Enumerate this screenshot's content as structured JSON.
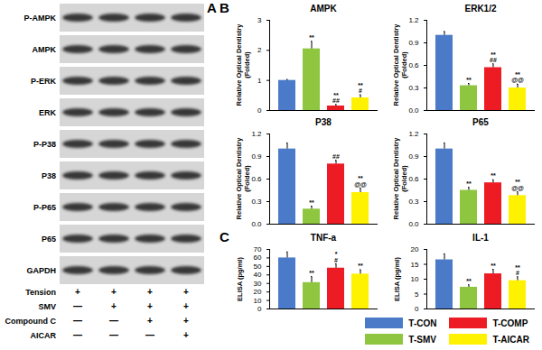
{
  "panel_labels": [
    "A",
    "B",
    "C"
  ],
  "legend": "bottom-right",
  "blot": {
    "rows": [
      "P-AMPK",
      "AMPK",
      "P-ERK",
      "ERK",
      "P-P38",
      "P38",
      "P-P65",
      "P65",
      "GAPDH"
    ],
    "conditions": [
      {
        "name": "Tension",
        "signs": [
          "+",
          "+",
          "+",
          "+"
        ]
      },
      {
        "name": "SMV",
        "signs": [
          "—",
          "+",
          "+",
          "+"
        ]
      },
      {
        "name": "Compound C",
        "signs": [
          "—",
          "—",
          "+",
          "+"
        ]
      },
      {
        "name": "AICAR",
        "signs": [
          "—",
          "—",
          "—",
          "+"
        ]
      }
    ]
  },
  "chart_data": [
    {
      "type": "bar",
      "title": "AMPK",
      "ylabel": [
        "Relative Optical Dentistry",
        "(Folded)"
      ],
      "categories": [
        "T-CON",
        "T-SMV",
        "T-COMP",
        "T-AICAR"
      ],
      "values": [
        1.0,
        2.05,
        0.15,
        0.42
      ],
      "errors": [
        0.03,
        0.25,
        0.05,
        0.1
      ],
      "colors": [
        "#4a7ac8",
        "#8ec63f",
        "#ed1c24",
        "#fff200"
      ],
      "annotations": [
        [],
        [
          "**"
        ],
        [
          "**",
          "##"
        ],
        [
          "**",
          "#"
        ]
      ],
      "ylim": [
        0,
        3
      ],
      "yticks": [
        0,
        1,
        2,
        3
      ],
      "tick_labels": "y"
    },
    {
      "type": "bar",
      "title": "ERK1/2",
      "ylabel": [
        "Relative Optical Dentistry",
        "(Folded)"
      ],
      "categories": [
        "T-CON",
        "T-SMV",
        "T-COMP",
        "T-AICAR"
      ],
      "values": [
        1.0,
        0.33,
        0.57,
        0.3
      ],
      "errors": [
        0.05,
        0.03,
        0.05,
        0.05
      ],
      "colors": [
        "#4a7ac8",
        "#8ec63f",
        "#ed1c24",
        "#fff200"
      ],
      "annotations": [
        [],
        [
          "**"
        ],
        [
          "**",
          "##"
        ],
        [
          "**",
          "@@"
        ]
      ],
      "ylim": [
        0,
        1.2
      ],
      "yticks": [
        {
          "value": 0,
          "label": "0.0"
        },
        {
          "value": 0.3,
          "label": "0.3"
        },
        {
          "value": 0.6,
          "label": "0.6"
        },
        {
          "value": 0.9,
          "label": "0.9"
        },
        {
          "value": 1.2,
          "label": "1.2"
        }
      ],
      "tick_labels": "y"
    },
    {
      "type": "bar",
      "title": "P38",
      "ylabel": [
        "Relative Optical Dentistry",
        "(Folded)"
      ],
      "categories": [
        "T-CON",
        "T-SMV",
        "T-COMP",
        "T-AICAR"
      ],
      "values": [
        1.0,
        0.2,
        0.8,
        0.42
      ],
      "errors": [
        0.08,
        0.04,
        0.05,
        0.06
      ],
      "colors": [
        "#4a7ac8",
        "#8ec63f",
        "#ed1c24",
        "#fff200"
      ],
      "annotations": [
        [],
        [
          "**"
        ],
        [
          "##"
        ],
        [
          "**",
          "@@"
        ]
      ],
      "ylim": [
        0,
        1.2
      ],
      "yticks": [
        {
          "value": 0,
          "label": "0.0"
        },
        {
          "value": 0.3,
          "label": "0.3"
        },
        {
          "value": 0.6,
          "label": "0.6"
        },
        {
          "value": 0.9,
          "label": "0.9"
        },
        {
          "value": 1.2,
          "label": "1.2"
        }
      ],
      "tick_labels": "y"
    },
    {
      "type": "bar",
      "title": "P65",
      "ylabel": [
        "Relative Optical Dentistry",
        "(Folded)"
      ],
      "categories": [
        "T-CON",
        "T-SMV",
        "T-COMP",
        "T-AICAR"
      ],
      "values": [
        1.0,
        0.45,
        0.55,
        0.38
      ],
      "errors": [
        0.08,
        0.04,
        0.04,
        0.05
      ],
      "colors": [
        "#4a7ac8",
        "#8ec63f",
        "#ed1c24",
        "#fff200"
      ],
      "annotations": [
        [],
        [
          "**"
        ],
        [
          "**"
        ],
        [
          "**",
          "@@"
        ]
      ],
      "ylim": [
        0,
        1.2
      ],
      "yticks": [
        {
          "value": 0,
          "label": "0.0"
        },
        {
          "value": 0.3,
          "label": "0.3"
        },
        {
          "value": 0.6,
          "label": "0.6"
        },
        {
          "value": 0.9,
          "label": "0.9"
        },
        {
          "value": 1.2,
          "label": "1.2"
        }
      ],
      "tick_labels": "y"
    },
    {
      "type": "bar",
      "title": "TNF-a",
      "ylabel": [
        "ELISA (pg/ml)"
      ],
      "categories": [
        "T-CON",
        "T-SMV",
        "T-COMP",
        "T-AICAR"
      ],
      "values": [
        60,
        31,
        48,
        41
      ],
      "errors": [
        7,
        7,
        5,
        5
      ],
      "colors": [
        "#4a7ac8",
        "#8ec63f",
        "#ed1c24",
        "#fff200"
      ],
      "annotations": [
        [],
        [
          "**"
        ],
        [
          "*",
          "#"
        ],
        [
          "**"
        ]
      ],
      "ylim": [
        0,
        70
      ],
      "yticks": [
        0,
        10,
        20,
        30,
        40,
        50,
        60,
        70
      ],
      "tick_labels": "y"
    },
    {
      "type": "bar",
      "title": "IL-1",
      "ylabel": [
        "ELISA (pg/ml)"
      ],
      "categories": [
        "T-CON",
        "T-SMV",
        "T-COMP",
        "T-AICAR"
      ],
      "values": [
        16.5,
        7.3,
        11.8,
        9.5
      ],
      "errors": [
        2,
        0.8,
        1.5,
        1.3
      ],
      "colors": [
        "#4a7ac8",
        "#8ec63f",
        "#ed1c24",
        "#fff200"
      ],
      "annotations": [
        [],
        [
          "**"
        ],
        [
          "**"
        ],
        [
          "**",
          "#"
        ]
      ],
      "ylim": [
        0,
        20
      ],
      "yticks": [
        0,
        5,
        10,
        15,
        20
      ],
      "tick_labels": "y"
    }
  ]
}
